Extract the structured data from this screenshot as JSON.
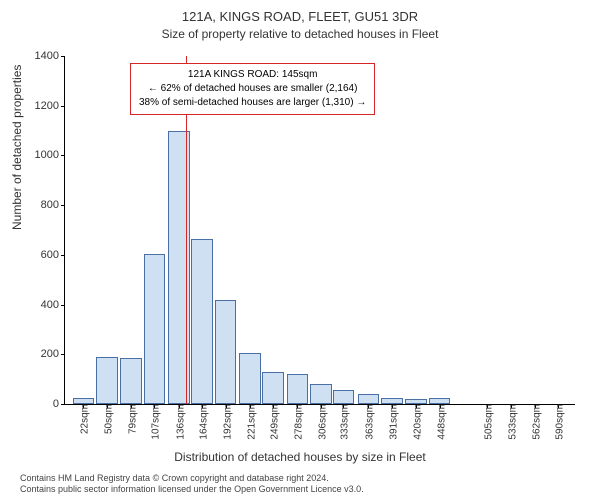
{
  "chart": {
    "type": "histogram",
    "title": "121A, KINGS ROAD, FLEET, GU51 3DR",
    "subtitle": "Size of property relative to detached houses in Fleet",
    "ylabel": "Number of detached properties",
    "xlabel": "Distribution of detached houses by size in Fleet",
    "ylim": [
      0,
      1400
    ],
    "ytick_step": 200,
    "xtick_labels": [
      "22sqm",
      "50sqm",
      "79sqm",
      "107sqm",
      "136sqm",
      "164sqm",
      "192sqm",
      "221sqm",
      "249sqm",
      "278sqm",
      "306sqm",
      "333sqm",
      "363sqm",
      "391sqm",
      "420sqm",
      "448sqm",
      "505sqm",
      "533sqm",
      "562sqm",
      "590sqm"
    ],
    "xtick_positions": [
      22,
      50,
      79,
      107,
      136,
      164,
      192,
      221,
      249,
      278,
      306,
      333,
      363,
      391,
      420,
      448,
      505,
      533,
      562,
      590
    ],
    "x_domain": [
      0,
      610
    ],
    "bars": [
      {
        "x": 22,
        "v": 25
      },
      {
        "x": 50,
        "v": 190
      },
      {
        "x": 79,
        "v": 185
      },
      {
        "x": 107,
        "v": 605
      },
      {
        "x": 136,
        "v": 1100
      },
      {
        "x": 164,
        "v": 665
      },
      {
        "x": 192,
        "v": 420
      },
      {
        "x": 221,
        "v": 205
      },
      {
        "x": 249,
        "v": 130
      },
      {
        "x": 278,
        "v": 120
      },
      {
        "x": 306,
        "v": 80
      },
      {
        "x": 333,
        "v": 55
      },
      {
        "x": 363,
        "v": 40
      },
      {
        "x": 391,
        "v": 25
      },
      {
        "x": 420,
        "v": 20
      },
      {
        "x": 448,
        "v": 25
      }
    ],
    "bar_width_domain": 26,
    "bar_fill": "#cfe0f3",
    "bar_stroke": "#4a6fa5",
    "refline": {
      "x": 145,
      "color": "#d62728",
      "width": 1
    },
    "annotation": {
      "lines": [
        "121A KINGS ROAD: 145sqm",
        "← 62% of detached houses are smaller (2,164)",
        "38% of semi-detached houses are larger (1,310) →"
      ],
      "border_color": "#d62728",
      "background": "#ffffff",
      "font_size": 10
    },
    "background_color": "#ffffff",
    "axis_color": "#000000",
    "tick_font_size": 11
  },
  "footer": {
    "line1": "Contains HM Land Registry data © Crown copyright and database right 2024.",
    "line2": "Contains public sector information licensed under the Open Government Licence v3.0."
  }
}
